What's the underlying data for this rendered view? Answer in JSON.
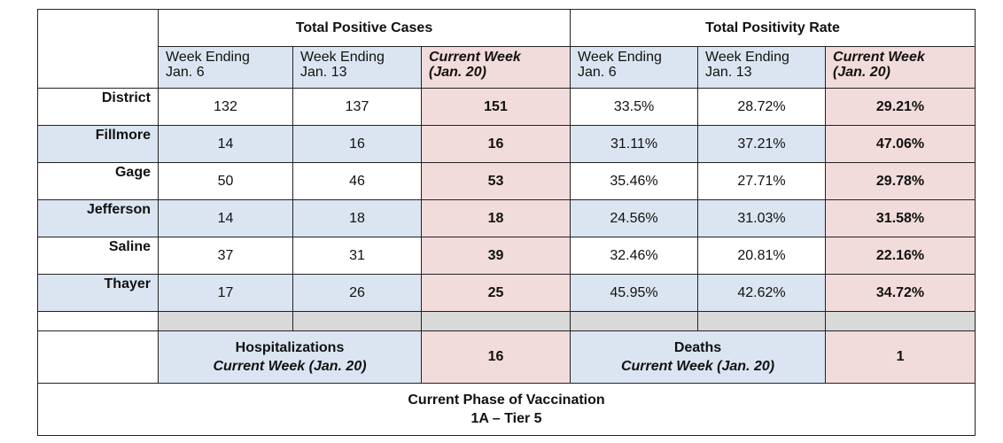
{
  "header": {
    "groups": [
      "Total Positive Cases",
      "Total Positivity Rate"
    ],
    "subheaders": [
      [
        "Week Ending",
        "Jan. 6"
      ],
      [
        "Week Ending",
        "Jan. 13"
      ],
      [
        "Current Week",
        "(Jan. 20)"
      ],
      [
        "Week Ending",
        "Jan. 6"
      ],
      [
        "Week Ending",
        "Jan. 13"
      ],
      [
        "Current Week",
        "(Jan. 20)"
      ]
    ]
  },
  "rows": [
    {
      "name": "District",
      "values": [
        "132",
        "137",
        "151",
        "33.5%",
        "28.72%",
        "29.21%"
      ]
    },
    {
      "name": "Fillmore",
      "values": [
        "14",
        "16",
        "16",
        "31.11%",
        "37.21%",
        "47.06%"
      ]
    },
    {
      "name": "Gage",
      "values": [
        "50",
        "46",
        "53",
        "35.46%",
        "27.71%",
        "29.78%"
      ]
    },
    {
      "name": "Jefferson",
      "values": [
        "14",
        "18",
        "18",
        "24.56%",
        "31.03%",
        "31.58%"
      ]
    },
    {
      "name": "Saline",
      "values": [
        "37",
        "31",
        "39",
        "32.46%",
        "20.81%",
        "22.16%"
      ]
    },
    {
      "name": "Thayer",
      "values": [
        "17",
        "26",
        "25",
        "45.95%",
        "42.62%",
        "34.72%"
      ]
    }
  ],
  "hospitalizations": {
    "label": [
      "Hospitalizations",
      "Current Week (Jan. 20)"
    ],
    "value": "16"
  },
  "deaths": {
    "label": [
      "Deaths",
      "Current Week (Jan. 20)"
    ],
    "value": "1"
  },
  "vaccination": [
    "Current Phase of Vaccination",
    "1A – Tier 5"
  ]
}
